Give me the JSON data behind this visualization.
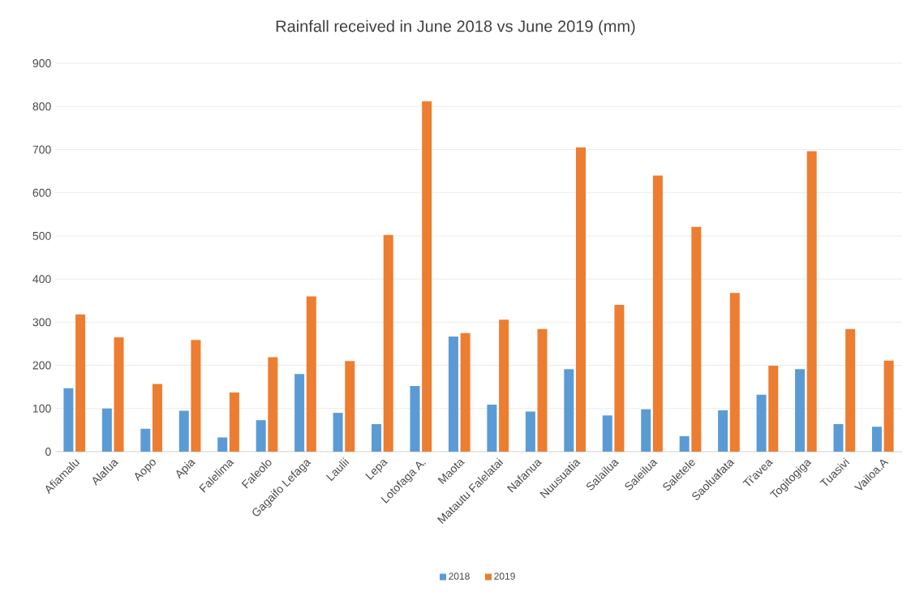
{
  "chart_data": {
    "type": "bar",
    "title": "Rainfall received in June 2018 vs June 2019 (mm)",
    "categories": [
      "Afiamalu",
      "Alafua",
      "Aopo",
      "Apia",
      "Falelima",
      "Faleolo",
      "Gagaifo Lefaga",
      "Laulii",
      "Lepa",
      "Lotofaga A.",
      "Maota",
      "Matautu Falelatai",
      "Nafanua",
      "Nuusuatia",
      "Salailua",
      "Saleilua",
      "Saletele",
      "Saoluafata",
      "Ti'avea",
      "Togitogiga",
      "Tuasivi",
      "Vailoa.A"
    ],
    "series": [
      {
        "name": "2018",
        "color": "#5b9bd5",
        "values": [
          147,
          100,
          53,
          95,
          33,
          73,
          180,
          90,
          64,
          152,
          267,
          109,
          93,
          191,
          84,
          98,
          36,
          96,
          132,
          191,
          64,
          58
        ]
      },
      {
        "name": "2019",
        "color": "#ed7d31",
        "values": [
          318,
          265,
          157,
          259,
          137,
          219,
          360,
          210,
          502,
          812,
          275,
          306,
          284,
          705,
          340,
          640,
          521,
          368,
          199,
          696,
          284,
          211
        ]
      }
    ],
    "ylim": [
      0,
      900
    ],
    "yticks": [
      0,
      100,
      200,
      300,
      400,
      500,
      600,
      700,
      800,
      900
    ],
    "grid": "y",
    "legend": "bottom"
  }
}
